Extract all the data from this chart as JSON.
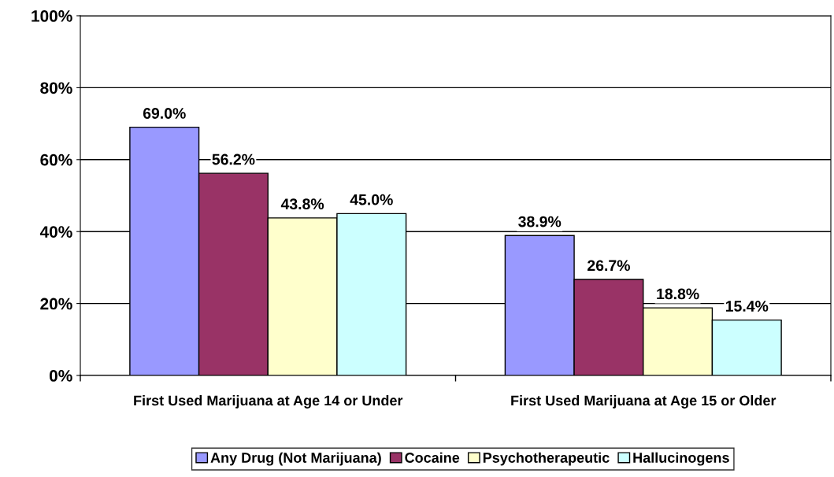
{
  "chart_data": {
    "type": "bar",
    "categories": [
      "First Used Marijuana at Age 14 or Under",
      "First Used Marijuana at Age 15 or Older"
    ],
    "series": [
      {
        "name": "Any Drug (Not Marijuana)",
        "color": "#9999ff",
        "values": [
          69.0,
          38.9
        ],
        "value_labels": [
          "69.0%",
          "38.9%"
        ]
      },
      {
        "name": "Cocaine",
        "color": "#993366",
        "values": [
          56.2,
          26.7
        ],
        "value_labels": [
          "56.2%",
          "26.7%"
        ]
      },
      {
        "name": "Psychotherapeutic",
        "color": "#ffffcc",
        "values": [
          43.8,
          18.8
        ],
        "value_labels": [
          "43.8%",
          "18.8%"
        ]
      },
      {
        "name": "Hallucinogens",
        "color": "#ccffff",
        "values": [
          45.0,
          15.4
        ],
        "value_labels": [
          "45.0%",
          "15.4%"
        ]
      }
    ],
    "ylim": [
      0,
      100
    ],
    "yticks": [
      {
        "value": 0,
        "label": "0%"
      },
      {
        "value": 20,
        "label": "20%"
      },
      {
        "value": 40,
        "label": "40%"
      },
      {
        "value": 60,
        "label": "60%"
      },
      {
        "value": 80,
        "label": "80%"
      },
      {
        "value": 100,
        "label": "100%"
      }
    ],
    "grid": "y",
    "legend": "bottom"
  }
}
